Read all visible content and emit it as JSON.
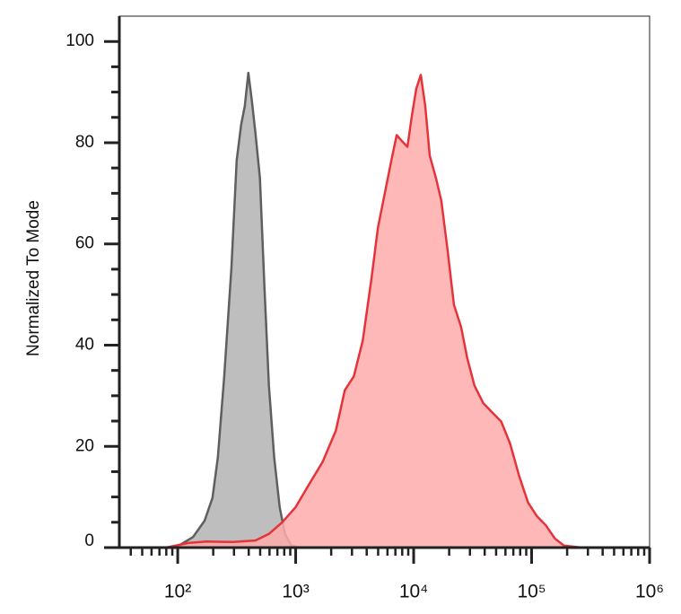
{
  "chart_data": {
    "type": "histogram-overlay",
    "y_label": "Normalized To Mode",
    "xscale": "log",
    "xlim": [
      32,
      1000000
    ],
    "ylim": [
      0,
      105
    ],
    "xticks": [
      {
        "value": 100,
        "label": "10²"
      },
      {
        "value": 1000,
        "label": "10³"
      },
      {
        "value": 10000,
        "label": "10⁴"
      },
      {
        "value": 100000,
        "label": "10⁵"
      },
      {
        "value": 1000000,
        "label": "10⁶"
      }
    ],
    "xminorticks": [
      40,
      50,
      60,
      70,
      80,
      90,
      200,
      300,
      400,
      500,
      600,
      700,
      800,
      900,
      2000,
      3000,
      4000,
      5000,
      6000,
      7000,
      8000,
      9000,
      20000,
      30000,
      40000,
      50000,
      60000,
      70000,
      80000,
      90000,
      200000,
      300000,
      400000,
      500000,
      600000,
      700000,
      800000,
      900000
    ],
    "yticks": [
      0,
      20,
      40,
      60,
      80,
      100
    ],
    "yminorticks": [
      5,
      10,
      15,
      25,
      30,
      35,
      45,
      50,
      55,
      65,
      70,
      75,
      85,
      90,
      95
    ],
    "series": [
      {
        "color": "#5f5f5f",
        "fill": "#bebebe",
        "x": [
          80,
          104,
          135,
          169,
          197,
          219,
          248,
          285,
          316,
          345,
          370,
          397,
          425,
          456,
          498,
          543,
          593,
          658,
          731,
          811,
          916,
          1091
        ],
        "values": [
          0,
          0.5,
          2.1,
          5.3,
          9.8,
          17.8,
          33.8,
          55.2,
          76.5,
          83.6,
          87.2,
          93.8,
          88.3,
          81.9,
          73.0,
          51.6,
          32.0,
          17.8,
          8.0,
          2.7,
          0.4,
          0
        ]
      },
      {
        "color": "#e5333b",
        "fill": "#ffabab",
        "x": [
          80,
          123,
          175,
          295,
          456,
          593,
          770,
          1000,
          1300,
          1690,
          2190,
          2610,
          3110,
          3700,
          4400,
          4980,
          5730,
          6470,
          7180,
          8110,
          8850,
          9660,
          10540,
          11500,
          12540,
          13690,
          15460,
          17170,
          19410,
          21930,
          25220,
          28490,
          32750,
          38990,
          46440,
          55250,
          65770,
          78290,
          93260,
          110950,
          132100,
          157300,
          187400,
          265600
        ],
        "values": [
          0,
          0.9,
          1.2,
          1.1,
          1.4,
          2.7,
          5.0,
          8.0,
          12.5,
          16.9,
          23.1,
          31.1,
          33.8,
          40.9,
          53.4,
          63.2,
          70.3,
          76.5,
          81.5,
          80.1,
          79.2,
          85.4,
          90.7,
          93.4,
          87.2,
          77.4,
          73.0,
          68.5,
          58.7,
          48.0,
          43.6,
          37.4,
          32.0,
          28.5,
          26.7,
          24.9,
          20.5,
          14.2,
          8.9,
          6.2,
          4.4,
          1.8,
          0.4,
          0
        ]
      }
    ]
  }
}
